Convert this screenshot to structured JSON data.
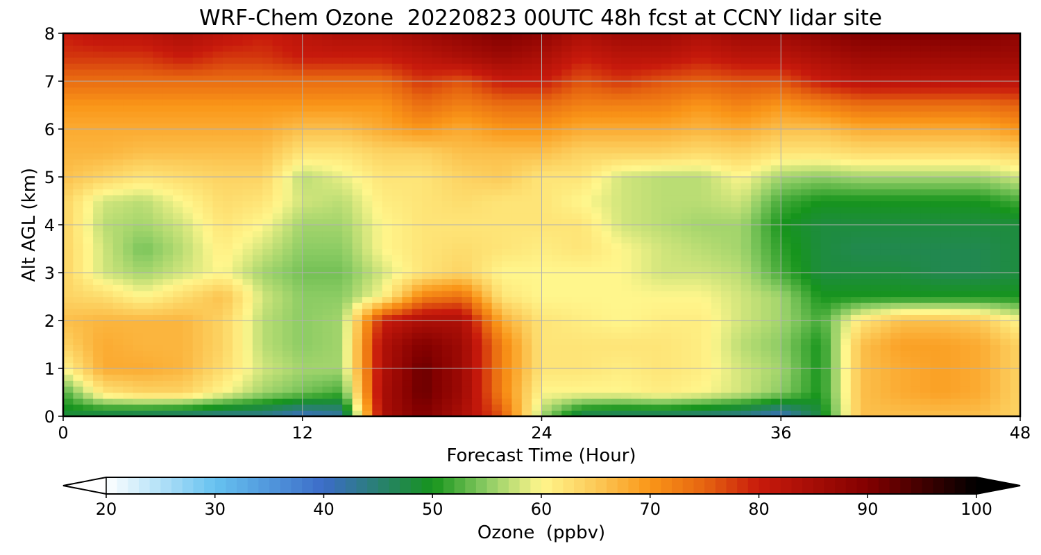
{
  "chart_data": {
    "type": "heatmap",
    "title": "WRF-Chem Ozone  20220823 00UTC 48h fcst at CCNY lidar site",
    "xlabel": "Forecast Time (Hour)",
    "ylabel": "Alt AGL (km)",
    "xlim": [
      0,
      48
    ],
    "ylim": [
      0,
      8
    ],
    "x_ticks": [
      "0",
      "12",
      "24",
      "36",
      "48"
    ],
    "y_ticks": [
      "0",
      "1",
      "2",
      "3",
      "4",
      "5",
      "6",
      "7",
      "8"
    ],
    "grid": true,
    "colorbar": {
      "label": "Ozone  (ppbv)",
      "range": [
        20,
        100
      ],
      "ticks": [
        "20",
        "30",
        "40",
        "50",
        "60",
        "70",
        "80",
        "90",
        "100"
      ],
      "extend": "both",
      "colors": {
        "20": "#ffffff",
        "30": "#66c2f0",
        "40": "#3c6cc8",
        "50": "#16941c",
        "55": "#8ccc64",
        "60": "#fff68c",
        "65": "#fcca58",
        "70": "#fa9618",
        "75": "#e66410",
        "80": "#c81a0c",
        "90": "#820000",
        "100": "#000000"
      }
    },
    "x_hours": [
      0,
      2,
      4,
      6,
      8,
      10,
      12,
      14,
      16,
      18,
      20,
      22,
      24,
      26,
      28,
      30,
      32,
      34,
      36,
      38,
      40,
      42,
      44,
      46,
      48
    ],
    "y_km": [
      0,
      0.5,
      1,
      1.5,
      2,
      2.5,
      3,
      3.5,
      4,
      4.5,
      5,
      5.5,
      6,
      6.5,
      7,
      7.5,
      8
    ],
    "values_ppbv": [
      [
        48,
        46,
        45,
        44,
        43,
        43,
        40,
        42,
        84,
        90,
        84,
        76,
        56,
        46,
        45,
        45,
        44,
        43,
        40,
        48,
        66,
        66,
        66,
        66,
        64
      ],
      [
        52,
        62,
        64,
        64,
        60,
        56,
        54,
        52,
        84,
        92,
        86,
        72,
        60,
        60,
        60,
        61,
        60,
        58,
        55,
        50,
        66,
        68,
        69,
        68,
        64
      ],
      [
        60,
        68,
        68,
        67,
        63,
        58,
        56,
        56,
        83,
        92,
        86,
        72,
        62,
        62,
        61,
        62,
        61,
        58,
        56,
        50,
        66,
        68,
        69,
        68,
        64
      ],
      [
        64,
        68,
        67,
        67,
        64,
        57,
        55,
        56,
        83,
        90,
        86,
        72,
        62,
        62,
        62,
        62,
        61,
        57,
        55,
        50,
        66,
        69,
        69,
        68,
        64
      ],
      [
        66,
        67,
        67,
        67,
        64,
        57,
        55,
        56,
        80,
        84,
        84,
        68,
        62,
        61,
        60,
        61,
        61,
        58,
        56,
        52,
        62,
        66,
        66,
        65,
        60
      ],
      [
        64,
        63,
        60,
        63,
        66,
        58,
        55,
        55,
        60,
        72,
        74,
        62,
        60,
        60,
        60,
        60,
        60,
        58,
        56,
        50,
        50,
        50,
        50,
        50,
        50
      ],
      [
        64,
        58,
        56,
        58,
        60,
        56,
        54,
        54,
        58,
        62,
        64,
        60,
        60,
        60,
        60,
        58,
        58,
        57,
        52,
        48,
        48,
        48,
        47,
        47,
        48
      ],
      [
        64,
        58,
        54,
        57,
        61,
        58,
        55,
        55,
        60,
        62,
        63,
        62,
        61,
        62,
        60,
        58,
        57,
        56,
        51,
        48,
        47,
        47,
        47,
        47,
        48
      ],
      [
        64,
        57,
        56,
        58,
        62,
        60,
        56,
        56,
        60,
        62,
        62,
        62,
        62,
        62,
        58,
        57,
        56,
        56,
        50,
        48,
        48,
        48,
        48,
        48,
        48
      ],
      [
        64,
        58,
        57,
        60,
        63,
        62,
        58,
        57,
        61,
        62,
        63,
        62,
        62,
        60,
        58,
        57,
        57,
        58,
        52,
        50,
        50,
        50,
        50,
        50,
        52
      ],
      [
        66,
        64,
        62,
        63,
        64,
        64,
        57,
        59,
        62,
        62,
        64,
        65,
        62,
        62,
        58,
        57,
        57,
        60,
        56,
        55,
        56,
        56,
        56,
        56,
        58
      ],
      [
        67,
        67,
        66,
        66,
        66,
        66,
        62,
        62,
        64,
        64,
        66,
        66,
        66,
        64,
        64,
        64,
        63,
        64,
        62,
        62,
        63,
        63,
        63,
        63,
        64
      ],
      [
        68,
        68,
        68,
        68,
        68,
        68,
        66,
        66,
        68,
        70,
        68,
        70,
        70,
        68,
        68,
        68,
        67,
        68,
        66,
        66,
        68,
        68,
        68,
        68,
        70
      ],
      [
        70,
        70,
        70,
        70,
        70,
        70,
        70,
        70,
        70,
        74,
        72,
        74,
        74,
        72,
        72,
        72,
        70,
        72,
        70,
        72,
        74,
        74,
        74,
        74,
        75
      ],
      [
        74,
        74,
        74,
        74,
        74,
        74,
        74,
        74,
        74,
        78,
        76,
        80,
        80,
        76,
        78,
        76,
        75,
        76,
        76,
        80,
        82,
        82,
        82,
        82,
        82
      ],
      [
        78,
        78,
        78,
        80,
        78,
        78,
        80,
        80,
        80,
        82,
        84,
        86,
        84,
        80,
        82,
        82,
        80,
        82,
        82,
        84,
        86,
        86,
        86,
        86,
        86
      ],
      [
        80,
        82,
        82,
        84,
        82,
        80,
        82,
        84,
        84,
        86,
        88,
        90,
        88,
        84,
        86,
        86,
        84,
        86,
        86,
        88,
        90,
        90,
        90,
        90,
        88
      ]
    ]
  }
}
